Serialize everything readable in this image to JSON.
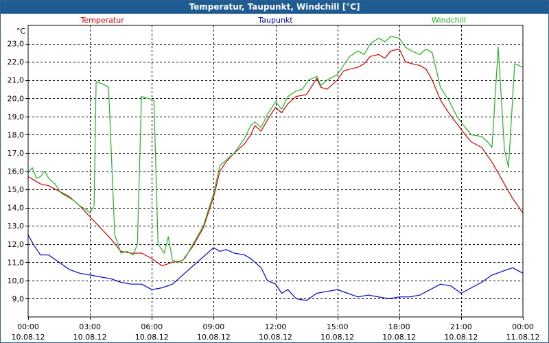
{
  "window": {
    "title": "Temperatur, Taupunkt, Windchill [°C]"
  },
  "chart_data": {
    "type": "line",
    "title": "Temperatur, Taupunkt, Windchill [°C]",
    "ylabel": "°C",
    "ylim": [
      8.0,
      24.0
    ],
    "xlim_hours": [
      0,
      24
    ],
    "grid": true,
    "yticks": [
      "9,0",
      "10,0",
      "11,0",
      "12,0",
      "13,0",
      "14,0",
      "15,0",
      "16,0",
      "17,0",
      "18,0",
      "19,0",
      "20,0",
      "21,0",
      "22,0",
      "23,0"
    ],
    "ytick_values": [
      9,
      10,
      11,
      12,
      13,
      14,
      15,
      16,
      17,
      18,
      19,
      20,
      21,
      22,
      23
    ],
    "xticks": [
      {
        "time": "00:00",
        "date": "10.08.12",
        "hour": 0
      },
      {
        "time": "03:00",
        "date": "10.08.12",
        "hour": 3
      },
      {
        "time": "06:00",
        "date": "10.08.12",
        "hour": 6
      },
      {
        "time": "09:00",
        "date": "10.08.12",
        "hour": 9
      },
      {
        "time": "12:00",
        "date": "10.08.12",
        "hour": 12
      },
      {
        "time": "15:00",
        "date": "10.08.12",
        "hour": 15
      },
      {
        "time": "18:00",
        "date": "10.08.12",
        "hour": 18
      },
      {
        "time": "21:00",
        "date": "10.08.12",
        "hour": 21
      },
      {
        "time": "00:00",
        "date": "11.08.12",
        "hour": 24
      }
    ],
    "series": [
      {
        "name": "Temperatur",
        "color": "#d40000",
        "points": [
          [
            0,
            15.7
          ],
          [
            0.3,
            15.5
          ],
          [
            0.6,
            15.3
          ],
          [
            1,
            15.2
          ],
          [
            1.5,
            14.9
          ],
          [
            2,
            14.6
          ],
          [
            2.5,
            14.1
          ],
          [
            3,
            13.5
          ],
          [
            3.5,
            12.9
          ],
          [
            4,
            12.3
          ],
          [
            4.5,
            11.6
          ],
          [
            5,
            11.5
          ],
          [
            5.5,
            11.5
          ],
          [
            6,
            11.2
          ],
          [
            6.5,
            10.8
          ],
          [
            7,
            11.0
          ],
          [
            7.5,
            11.1
          ],
          [
            8,
            11.9
          ],
          [
            8.5,
            12.9
          ],
          [
            9,
            14.6
          ],
          [
            9.3,
            16.0
          ],
          [
            9.6,
            16.5
          ],
          [
            10,
            17.0
          ],
          [
            10.5,
            17.5
          ],
          [
            10.8,
            18.0
          ],
          [
            11,
            18.5
          ],
          [
            11.3,
            18.2
          ],
          [
            11.6,
            18.8
          ],
          [
            12,
            19.5
          ],
          [
            12.3,
            19.2
          ],
          [
            12.6,
            19.7
          ],
          [
            13,
            20.1
          ],
          [
            13.5,
            20.2
          ],
          [
            14,
            21.1
          ],
          [
            14.2,
            20.6
          ],
          [
            14.5,
            20.5
          ],
          [
            15,
            21.0
          ],
          [
            15.3,
            21.5
          ],
          [
            15.6,
            21.6
          ],
          [
            16,
            21.7
          ],
          [
            16.3,
            21.9
          ],
          [
            16.6,
            22.3
          ],
          [
            17,
            22.4
          ],
          [
            17.3,
            22.2
          ],
          [
            17.6,
            22.6
          ],
          [
            18,
            22.7
          ],
          [
            18.3,
            22.0
          ],
          [
            18.6,
            21.9
          ],
          [
            19,
            21.8
          ],
          [
            19.3,
            21.6
          ],
          [
            19.6,
            21.0
          ],
          [
            20,
            19.9
          ],
          [
            20.4,
            19.2
          ],
          [
            20.8,
            18.6
          ],
          [
            21.2,
            18.0
          ],
          [
            21.5,
            17.6
          ],
          [
            22,
            17.3
          ],
          [
            22.5,
            16.5
          ],
          [
            23,
            15.5
          ],
          [
            23.5,
            14.5
          ],
          [
            24,
            13.7
          ]
        ]
      },
      {
        "name": "Taupunkt",
        "color": "#0000c8",
        "points": [
          [
            0,
            12.5
          ],
          [
            0.3,
            11.9
          ],
          [
            0.6,
            11.4
          ],
          [
            1,
            11.4
          ],
          [
            1.5,
            11.0
          ],
          [
            2,
            10.6
          ],
          [
            2.5,
            10.4
          ],
          [
            3,
            10.3
          ],
          [
            3.5,
            10.2
          ],
          [
            4,
            10.1
          ],
          [
            4.5,
            9.9
          ],
          [
            5,
            9.8
          ],
          [
            5.5,
            9.8
          ],
          [
            6,
            9.5
          ],
          [
            6.5,
            9.6
          ],
          [
            7,
            9.8
          ],
          [
            7.5,
            10.3
          ],
          [
            8,
            10.8
          ],
          [
            8.5,
            11.3
          ],
          [
            9,
            11.8
          ],
          [
            9.3,
            11.6
          ],
          [
            9.6,
            11.7
          ],
          [
            10,
            11.5
          ],
          [
            10.5,
            11.4
          ],
          [
            10.8,
            11.2
          ],
          [
            11,
            11.0
          ],
          [
            11.3,
            10.7
          ],
          [
            11.6,
            10.0
          ],
          [
            12,
            9.8
          ],
          [
            12.3,
            9.3
          ],
          [
            12.6,
            9.5
          ],
          [
            13,
            9.0
          ],
          [
            13.5,
            8.9
          ],
          [
            14,
            9.3
          ],
          [
            14.5,
            9.4
          ],
          [
            15,
            9.5
          ],
          [
            15.5,
            9.3
          ],
          [
            16,
            9.1
          ],
          [
            16.5,
            9.2
          ],
          [
            17,
            9.1
          ],
          [
            17.5,
            9.0
          ],
          [
            18,
            9.1
          ],
          [
            18.5,
            9.1
          ],
          [
            19,
            9.2
          ],
          [
            19.5,
            9.5
          ],
          [
            20,
            9.8
          ],
          [
            20.5,
            9.7
          ],
          [
            21,
            9.3
          ],
          [
            21.5,
            9.6
          ],
          [
            22,
            9.9
          ],
          [
            22.5,
            10.3
          ],
          [
            23,
            10.5
          ],
          [
            23.5,
            10.7
          ],
          [
            24,
            10.4
          ]
        ]
      },
      {
        "name": "Windchill",
        "color": "#22b422",
        "points": [
          [
            0,
            15.9
          ],
          [
            0.2,
            16.2
          ],
          [
            0.4,
            15.6
          ],
          [
            0.6,
            15.7
          ],
          [
            0.8,
            16.0
          ],
          [
            1,
            15.6
          ],
          [
            1.3,
            15.3
          ],
          [
            1.6,
            14.8
          ],
          [
            1.9,
            14.6
          ],
          [
            2.2,
            14.4
          ],
          [
            2.5,
            14.1
          ],
          [
            2.8,
            13.9
          ],
          [
            3,
            13.7
          ],
          [
            3.2,
            14.1
          ],
          [
            3.3,
            20.9
          ],
          [
            3.6,
            20.8
          ],
          [
            3.9,
            20.6
          ],
          [
            4.2,
            12.5
          ],
          [
            4.5,
            11.5
          ],
          [
            4.8,
            11.6
          ],
          [
            5.1,
            11.4
          ],
          [
            5.3,
            12.0
          ],
          [
            5.5,
            20.1
          ],
          [
            5.8,
            20.0
          ],
          [
            6.1,
            19.9
          ],
          [
            6.3,
            12.0
          ],
          [
            6.6,
            11.5
          ],
          [
            6.8,
            12.4
          ],
          [
            7.0,
            11.1
          ],
          [
            7.3,
            11.0
          ],
          [
            7.6,
            11.2
          ],
          [
            8,
            12.0
          ],
          [
            8.5,
            13.0
          ],
          [
            9,
            14.8
          ],
          [
            9.3,
            16.3
          ],
          [
            9.6,
            16.6
          ],
          [
            10,
            17.0
          ],
          [
            10.5,
            17.8
          ],
          [
            10.8,
            18.5
          ],
          [
            11,
            18.7
          ],
          [
            11.3,
            18.4
          ],
          [
            11.6,
            19.1
          ],
          [
            12,
            19.8
          ],
          [
            12.3,
            19.4
          ],
          [
            12.6,
            20.1
          ],
          [
            13,
            20.4
          ],
          [
            13.3,
            20.5
          ],
          [
            13.6,
            21.0
          ],
          [
            14,
            21.2
          ],
          [
            14.2,
            20.7
          ],
          [
            14.5,
            21.0
          ],
          [
            15,
            21.3
          ],
          [
            15.3,
            21.8
          ],
          [
            15.6,
            22.3
          ],
          [
            16,
            22.6
          ],
          [
            16.3,
            22.4
          ],
          [
            16.6,
            23.0
          ],
          [
            17,
            23.3
          ],
          [
            17.3,
            23.1
          ],
          [
            17.6,
            23.4
          ],
          [
            18,
            23.3
          ],
          [
            18.3,
            22.8
          ],
          [
            18.6,
            22.6
          ],
          [
            19,
            22.4
          ],
          [
            19.3,
            22.7
          ],
          [
            19.6,
            22.5
          ],
          [
            20,
            20.6
          ],
          [
            20.4,
            19.9
          ],
          [
            20.8,
            19.0
          ],
          [
            21.2,
            18.4
          ],
          [
            21.5,
            18.0
          ],
          [
            22,
            17.9
          ],
          [
            22.3,
            17.6
          ],
          [
            22.5,
            17.3
          ],
          [
            22.8,
            22.8
          ],
          [
            23.1,
            17.2
          ],
          [
            23.3,
            16.2
          ],
          [
            23.6,
            21.9
          ],
          [
            24,
            21.7
          ]
        ]
      }
    ]
  }
}
